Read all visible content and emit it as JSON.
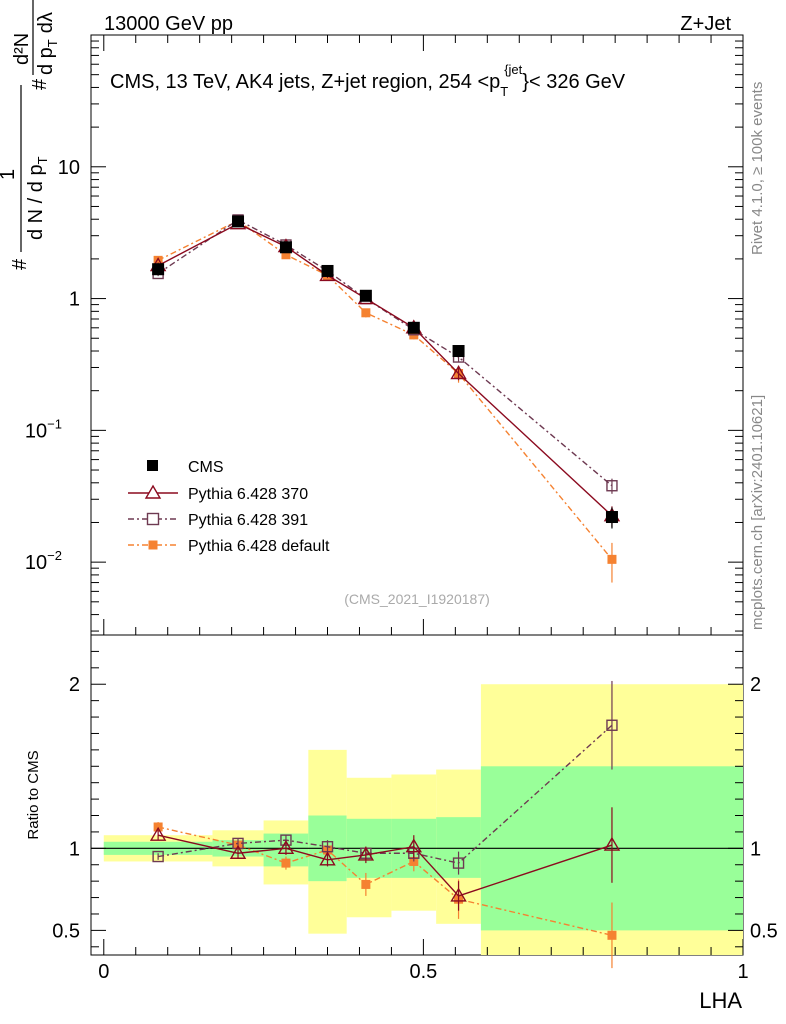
{
  "header": {
    "left": "13000 GeV pp",
    "right": "Z+Jet"
  },
  "title": {
    "main": "CMS, 13 TeV, AK4 jets, Z+jet region, 254 <p",
    "sub": "T",
    "sup": "{jet",
    "after": "}< 326 GeV"
  },
  "side": {
    "rivet": "Rivet 4.1.0, ≥ 100k events",
    "mcplots": "mcplots.cern.ch [arXiv:2401.10621]"
  },
  "analysis_id": "(CMS_2021_I1920187)",
  "ylabel": {
    "hash1": "#",
    "one": "1",
    "dN": "d N / d p",
    "dN_sub": "T",
    "hash2": "#",
    "d2N": "d²N",
    "dpT": "d p",
    "dpT_sub": "T",
    "dlambda": "dλ"
  },
  "ratio_ylabel": "Ratio to CMS",
  "xlabel": "LHA",
  "colors": {
    "cms": "#000000",
    "p370": "#8b0a1f",
    "p391": "#6e3a52",
    "pdef": "#f58231",
    "band_green": "#99ff99",
    "band_yellow": "#ffff99"
  },
  "chart_data": [
    {
      "type": "line",
      "panel": "main",
      "yscale": "log",
      "ylim": [
        0.0028,
        100
      ],
      "xlim": [
        -0.02,
        1
      ],
      "y_ticks": [
        {
          "value": 10,
          "label": "10"
        },
        {
          "value": 1,
          "label": "1"
        },
        {
          "value": 0.1,
          "label": "10",
          "exp": "−1"
        },
        {
          "value": 0.01,
          "label": "10",
          "exp": "−2"
        }
      ],
      "series": [
        {
          "name": "CMS",
          "marker": "square-filled",
          "x": [
            0.085,
            0.21,
            0.285,
            0.35,
            0.41,
            0.485,
            0.555,
            0.795
          ],
          "y": [
            1.67,
            3.85,
            2.45,
            1.62,
            1.05,
            0.6,
            0.4,
            0.022
          ],
          "err": [
            0.05,
            0.1,
            0.08,
            0.05,
            0.05,
            0.03,
            0.03,
            0.004
          ]
        },
        {
          "name": "Pythia 6.428 370",
          "marker": "triangle-open",
          "dash": "solid",
          "x": [
            0.085,
            0.21,
            0.285,
            0.35,
            0.41,
            0.485,
            0.555,
            0.795
          ],
          "y": [
            1.78,
            3.7,
            2.48,
            1.5,
            1.0,
            0.6,
            0.27,
            0.0225
          ],
          "err": [
            0.1,
            0.2,
            0.12,
            0.07,
            0.05,
            0.03,
            0.03,
            0.004
          ]
        },
        {
          "name": "Pythia 6.428 391",
          "marker": "square-open",
          "dash": "dashdot",
          "x": [
            0.085,
            0.21,
            0.285,
            0.35,
            0.41,
            0.485,
            0.555,
            0.795
          ],
          "y": [
            1.55,
            3.95,
            2.55,
            1.62,
            1.0,
            0.58,
            0.36,
            0.038
          ],
          "err": [
            0.07,
            0.2,
            0.12,
            0.07,
            0.05,
            0.03,
            0.03,
            0.005
          ]
        },
        {
          "name": "Pythia 6.428 default",
          "marker": "square-filled",
          "dash": "dashdot",
          "x": [
            0.085,
            0.21,
            0.285,
            0.35,
            0.41,
            0.485,
            0.555,
            0.795
          ],
          "y": [
            1.95,
            3.9,
            2.15,
            1.5,
            0.78,
            0.53,
            0.27,
            0.0105
          ],
          "err": [
            0.08,
            0.2,
            0.1,
            0.07,
            0.06,
            0.04,
            0.04,
            0.0035
          ]
        }
      ]
    },
    {
      "type": "line",
      "panel": "ratio",
      "ylabel": "Ratio to CMS",
      "xlabel": "LHA",
      "ylim": [
        0.35,
        2.3
      ],
      "xlim": [
        -0.02,
        1
      ],
      "x_ticks": [
        {
          "value": 0,
          "label": "0"
        },
        {
          "value": 0.5,
          "label": "0.5"
        },
        {
          "value": 1,
          "label": "1"
        }
      ],
      "y_ticks": [
        {
          "value": 2,
          "label": "2"
        },
        {
          "value": 1,
          "label": "1"
        },
        {
          "value": 0.5,
          "label": "0.5"
        }
      ],
      "bands": [
        {
          "x0": 0.0,
          "x1": 0.17,
          "g": [
            0.96,
            1.04
          ],
          "y": [
            0.92,
            1.08
          ]
        },
        {
          "x0": 0.17,
          "x1": 0.25,
          "g": [
            0.95,
            1.05
          ],
          "y": [
            0.89,
            1.11
          ]
        },
        {
          "x0": 0.25,
          "x1": 0.32,
          "g": [
            0.89,
            1.09
          ],
          "y": [
            0.78,
            1.17
          ]
        },
        {
          "x0": 0.32,
          "x1": 0.38,
          "g": [
            0.8,
            1.2
          ],
          "y": [
            0.48,
            1.6
          ]
        },
        {
          "x0": 0.38,
          "x1": 0.45,
          "g": [
            0.82,
            1.18
          ],
          "y": [
            0.58,
            1.43
          ]
        },
        {
          "x0": 0.45,
          "x1": 0.52,
          "g": [
            0.82,
            1.18
          ],
          "y": [
            0.62,
            1.45
          ]
        },
        {
          "x0": 0.52,
          "x1": 0.59,
          "g": [
            0.82,
            1.19
          ],
          "y": [
            0.54,
            1.48
          ]
        },
        {
          "x0": 0.59,
          "x1": 1.0,
          "g": [
            0.5,
            1.5
          ],
          "y": [
            0.3,
            2.0
          ]
        }
      ],
      "series": [
        {
          "name": "Pythia 6.428 370",
          "x": [
            0.085,
            0.21,
            0.285,
            0.35,
            0.41,
            0.485,
            0.555,
            0.795
          ],
          "y": [
            1.08,
            0.97,
            1.0,
            0.93,
            0.96,
            1.01,
            0.71,
            1.02
          ],
          "err": [
            0.03,
            0.03,
            0.04,
            0.04,
            0.05,
            0.07,
            0.09,
            0.23
          ]
        },
        {
          "name": "Pythia 6.428 391",
          "x": [
            0.085,
            0.21,
            0.285,
            0.35,
            0.41,
            0.485,
            0.555,
            0.795
          ],
          "y": [
            0.95,
            1.03,
            1.05,
            1.01,
            0.97,
            0.97,
            0.91,
            1.75
          ],
          "err": [
            0.02,
            0.03,
            0.03,
            0.04,
            0.04,
            0.05,
            0.07,
            0.27
          ]
        },
        {
          "name": "Pythia 6.428 default",
          "x": [
            0.085,
            0.21,
            0.285,
            0.35,
            0.41,
            0.485,
            0.555,
            0.795
          ],
          "y": [
            1.13,
            1.02,
            0.91,
            0.99,
            0.78,
            0.92,
            0.69,
            0.47
          ],
          "err": [
            0.03,
            0.03,
            0.04,
            0.05,
            0.07,
            0.06,
            0.12,
            0.2
          ]
        }
      ]
    }
  ]
}
